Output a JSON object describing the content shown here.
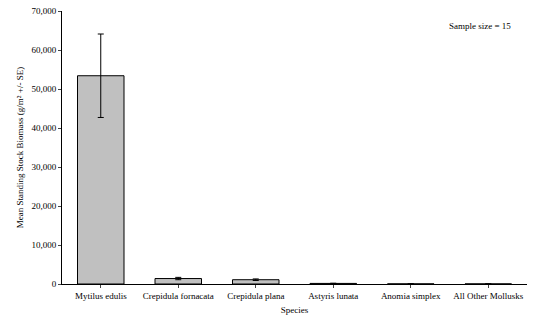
{
  "chart_data": {
    "type": "bar",
    "x_label": "Species",
    "y_label": "Mean Standing Stock Biomass (g/m² +/- SE)",
    "annotation": "Sample size = 15",
    "categories": [
      "Mytilus edulis",
      "Crepidula fornacata",
      "Crepidula plana",
      "Astyris lunata",
      "Anomia simplex",
      "All Other Mollusks"
    ],
    "values": [
      53400,
      1400,
      1100,
      150,
      30,
      20
    ],
    "errors": [
      10700,
      300,
      200,
      50,
      10,
      5
    ],
    "color": "#c0c0c0",
    "ylim": [
      0,
      70000
    ],
    "yticks": [
      0,
      {
        "value": 10000,
        "label": "10,000"
      },
      {
        "value": 20000,
        "label": "20,000"
      },
      {
        "value": 30000,
        "label": "30,000"
      },
      {
        "value": 40000,
        "label": "40,000"
      },
      {
        "value": 50000,
        "label": "50,000"
      },
      {
        "value": 60000,
        "label": "60,000"
      },
      {
        "value": 70000,
        "label": "70,000"
      }
    ],
    "grid": false
  }
}
